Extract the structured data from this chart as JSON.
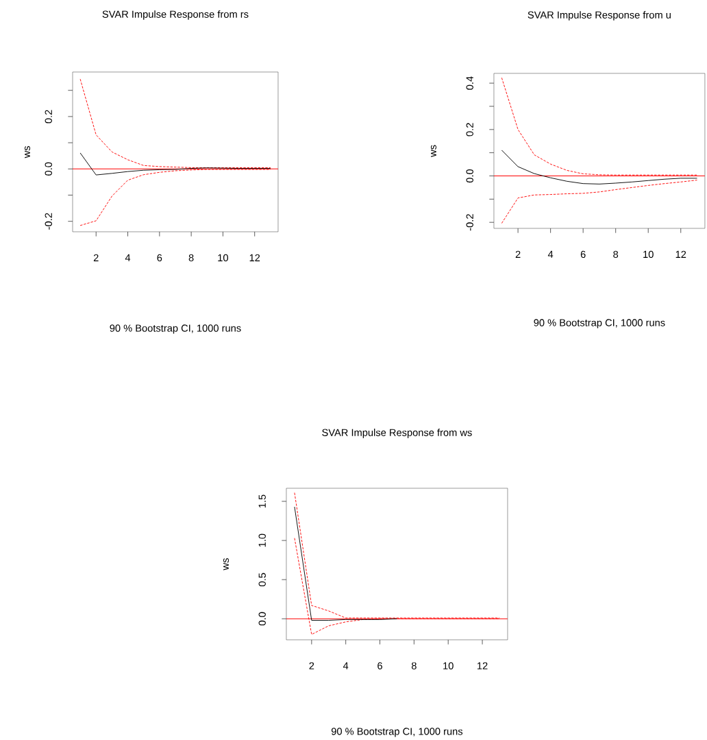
{
  "chart_data": [
    {
      "type": "line",
      "title": "SVAR Impulse Response from rs",
      "xlabel": "90 % Bootstrap CI,  1000 runs",
      "ylabel": "ws",
      "x": [
        1,
        2,
        3,
        4,
        5,
        6,
        7,
        8,
        9,
        10,
        11,
        12,
        13
      ],
      "series": [
        {
          "color": "#000000",
          "line_style": "solid",
          "values": [
            0.061,
            -0.023,
            -0.017,
            -0.01,
            -0.005,
            -0.003,
            -0.002,
            0.002,
            0.004,
            0.003,
            0.002,
            0.002,
            0.002
          ]
        },
        {
          "color": "#ff0000",
          "line_style": "dashed",
          "values": [
            0.343,
            0.13,
            0.065,
            0.035,
            0.013,
            0.009,
            0.007,
            0.005,
            0.005,
            0.005,
            0.005,
            0.005,
            0.005
          ]
        },
        {
          "color": "#ff0000",
          "line_style": "dashed",
          "values": [
            -0.216,
            -0.198,
            -0.104,
            -0.043,
            -0.022,
            -0.013,
            -0.007,
            -0.004,
            -0.002,
            -0.002,
            -0.002,
            -0.002,
            -0.002
          ]
        }
      ],
      "xlim": [
        0.52,
        13.48
      ],
      "ylim": [
        -0.24,
        0.37
      ],
      "xticks": [
        2,
        4,
        6,
        8,
        10,
        12
      ],
      "yticks": [
        -0.2,
        {
          "value": -0.1,
          "label": null
        },
        {
          "value": 0,
          "label": "0.0"
        },
        {
          "value": 0.1,
          "label": null
        },
        0.2,
        {
          "value": 0.3,
          "label": null
        }
      ],
      "ref_lines": [
        {
          "axis": "y",
          "value": 0,
          "color": "#ff0000"
        }
      ],
      "grid": false,
      "marker": "none"
    },
    {
      "type": "line",
      "title": "SVAR Impulse Response from u",
      "xlabel": "90 % Bootstrap CI,  1000 runs",
      "ylabel": "ws",
      "x": [
        1,
        2,
        3,
        4,
        5,
        6,
        7,
        8,
        9,
        10,
        11,
        12,
        13
      ],
      "series": [
        {
          "color": "#000000",
          "line_style": "solid",
          "values": [
            0.111,
            0.04,
            0.01,
            -0.008,
            -0.023,
            -0.033,
            -0.035,
            -0.031,
            -0.026,
            -0.02,
            -0.014,
            -0.01,
            -0.01
          ]
        },
        {
          "color": "#ff0000",
          "line_style": "dashed",
          "values": [
            0.423,
            0.2,
            0.091,
            0.051,
            0.024,
            0.009,
            0.005,
            0.004,
            0.004,
            0.004,
            0.004,
            0.004,
            0.004
          ]
        },
        {
          "color": "#ff0000",
          "line_style": "dashed",
          "values": [
            -0.204,
            -0.095,
            -0.082,
            -0.08,
            -0.077,
            -0.075,
            -0.069,
            -0.059,
            -0.05,
            -0.041,
            -0.033,
            -0.026,
            -0.018
          ]
        }
      ],
      "xlim": [
        0.52,
        13.48
      ],
      "ylim": [
        -0.226,
        0.442
      ],
      "xticks": [
        2,
        4,
        6,
        8,
        10,
        12
      ],
      "yticks": [
        -0.2,
        {
          "value": -0.1,
          "label": null
        },
        {
          "value": 0,
          "label": "0.0"
        },
        {
          "value": 0.1,
          "label": null
        },
        0.2,
        {
          "value": 0.3,
          "label": null
        },
        0.4
      ],
      "ref_lines": [
        {
          "axis": "y",
          "value": 0,
          "color": "#ff0000"
        }
      ],
      "grid": false,
      "marker": "none"
    },
    {
      "type": "line",
      "title": "SVAR Impulse Response from ws",
      "xlabel": "90 % Bootstrap CI,  1000 runs",
      "ylabel": "ws",
      "x": [
        1,
        2,
        3,
        4,
        5,
        6,
        7,
        8,
        9,
        10,
        11,
        12,
        13
      ],
      "series": [
        {
          "color": "#000000",
          "line_style": "solid",
          "values": [
            1.43,
            -0.02,
            -0.02,
            -0.01,
            -0.01,
            -0.01,
            0,
            null,
            null,
            null,
            null,
            null,
            null
          ]
        },
        {
          "color": "#ff0000",
          "line_style": "dashed",
          "values": [
            1.61,
            0.17,
            0.1,
            0.01,
            0.01,
            0.01,
            0.01,
            0.01,
            0.01,
            0.01,
            0.01,
            0.01,
            0.01
          ]
        },
        {
          "color": "#ff0000",
          "line_style": "dashed",
          "values": [
            1.03,
            -0.2,
            -0.09,
            -0.04,
            -0.01,
            0,
            0,
            0,
            0,
            0,
            0,
            0,
            0
          ]
        }
      ],
      "xlim": [
        0.52,
        13.48
      ],
      "ylim": [
        -0.269,
        1.667
      ],
      "xticks": [
        2,
        4,
        6,
        8,
        10,
        12
      ],
      "yticks": [
        {
          "value": 0,
          "label": "0.0"
        },
        {
          "value": 0.5,
          "label": "0.5"
        },
        {
          "value": 1,
          "label": "1.0"
        },
        {
          "value": 1.5,
          "label": "1.5"
        }
      ],
      "ref_lines": [
        {
          "axis": "y",
          "value": 0,
          "color": "#ff0000"
        }
      ],
      "grid": false,
      "marker": "none"
    }
  ]
}
